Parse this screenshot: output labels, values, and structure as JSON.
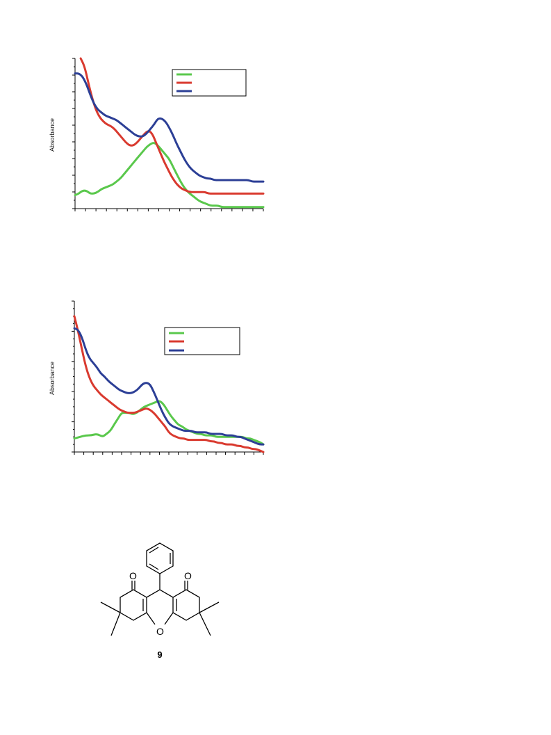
{
  "chart_data": [
    {
      "type": "line",
      "ylabel": "Absorbance",
      "xlabel": "",
      "xlim": [
        0,
        100
      ],
      "ylim": [
        0,
        1
      ],
      "grid": false,
      "legend_position": "top-right",
      "legend_labels_visible": false,
      "series": [
        {
          "color": "#5ac84c",
          "x": [
            0,
            2,
            4,
            6,
            8,
            10,
            12,
            14,
            16,
            18,
            20,
            22,
            24,
            26,
            28,
            30,
            32,
            34,
            36,
            38,
            40,
            42,
            44,
            46,
            48,
            50,
            52,
            54,
            56,
            58,
            60,
            62,
            64,
            66,
            68,
            70,
            72,
            74,
            76,
            78,
            80,
            82,
            84,
            86,
            88,
            90,
            92,
            94,
            96,
            98,
            100
          ],
          "y": [
            0.09,
            0.1,
            0.12,
            0.12,
            0.1,
            0.1,
            0.11,
            0.13,
            0.14,
            0.15,
            0.16,
            0.18,
            0.2,
            0.23,
            0.26,
            0.29,
            0.32,
            0.35,
            0.38,
            0.41,
            0.43,
            0.44,
            0.42,
            0.39,
            0.36,
            0.33,
            0.28,
            0.23,
            0.18,
            0.14,
            0.11,
            0.09,
            0.07,
            0.05,
            0.04,
            0.03,
            0.02,
            0.02,
            0.02,
            0.01,
            0.01,
            0.01,
            0.01,
            0.01,
            0.01,
            0.01,
            0.01,
            0.01,
            0.01,
            0.01,
            0.01
          ]
        },
        {
          "color": "#d93a2f",
          "x": [
            3,
            5,
            7,
            9,
            11,
            13,
            15,
            17,
            19,
            21,
            23,
            25,
            27,
            29,
            31,
            33,
            35,
            37,
            39,
            41,
            43,
            45,
            47,
            49,
            51,
            53,
            55,
            57,
            59,
            61,
            63,
            65,
            67,
            69,
            71,
            73,
            75,
            77,
            79,
            81,
            83,
            85,
            87,
            89,
            91,
            93,
            95,
            97,
            99,
            100
          ],
          "y": [
            1.0,
            0.95,
            0.84,
            0.74,
            0.66,
            0.61,
            0.58,
            0.56,
            0.55,
            0.53,
            0.5,
            0.47,
            0.44,
            0.42,
            0.42,
            0.44,
            0.47,
            0.5,
            0.52,
            0.5,
            0.44,
            0.38,
            0.32,
            0.27,
            0.22,
            0.18,
            0.15,
            0.13,
            0.12,
            0.11,
            0.11,
            0.11,
            0.11,
            0.11,
            0.1,
            0.1,
            0.1,
            0.1,
            0.1,
            0.1,
            0.1,
            0.1,
            0.1,
            0.1,
            0.1,
            0.1,
            0.1,
            0.1,
            0.1,
            0.1
          ]
        },
        {
          "color": "#2c3f96",
          "x": [
            0,
            2,
            4,
            6,
            8,
            10,
            12,
            14,
            16,
            18,
            20,
            22,
            24,
            26,
            28,
            30,
            32,
            34,
            36,
            38,
            40,
            42,
            44,
            46,
            48,
            50,
            52,
            54,
            56,
            58,
            60,
            62,
            64,
            66,
            68,
            70,
            72,
            74,
            76,
            78,
            80,
            82,
            84,
            86,
            88,
            90,
            92,
            94,
            96,
            98,
            100
          ],
          "y": [
            0.9,
            0.9,
            0.88,
            0.83,
            0.76,
            0.7,
            0.66,
            0.64,
            0.62,
            0.61,
            0.6,
            0.59,
            0.57,
            0.55,
            0.53,
            0.51,
            0.49,
            0.48,
            0.48,
            0.5,
            0.53,
            0.56,
            0.6,
            0.6,
            0.58,
            0.54,
            0.49,
            0.43,
            0.38,
            0.33,
            0.29,
            0.26,
            0.24,
            0.22,
            0.21,
            0.2,
            0.2,
            0.19,
            0.19,
            0.19,
            0.19,
            0.19,
            0.19,
            0.19,
            0.19,
            0.19,
            0.19,
            0.18,
            0.18,
            0.18,
            0.18
          ]
        }
      ]
    },
    {
      "type": "line",
      "ylabel": "Absorbance",
      "xlabel": "",
      "xlim": [
        0,
        100
      ],
      "ylim": [
        0,
        1
      ],
      "grid": false,
      "legend_position": "top-right",
      "legend_labels_visible": false,
      "series": [
        {
          "color": "#5ac84c",
          "x": [
            0,
            3,
            6,
            9,
            12,
            15,
            17,
            19,
            21,
            23,
            25,
            27,
            29,
            31,
            33,
            35,
            37,
            39,
            41,
            43,
            45,
            47,
            49,
            51,
            53,
            55,
            57,
            59,
            61,
            63,
            65,
            67,
            69,
            71,
            73,
            75,
            77,
            79,
            81,
            83,
            85,
            87,
            89,
            91,
            93,
            95,
            97,
            99,
            100
          ],
          "y": [
            0.09,
            0.1,
            0.11,
            0.11,
            0.12,
            0.1,
            0.12,
            0.14,
            0.18,
            0.22,
            0.26,
            0.26,
            0.26,
            0.25,
            0.26,
            0.28,
            0.3,
            0.31,
            0.32,
            0.33,
            0.34,
            0.32,
            0.28,
            0.24,
            0.21,
            0.18,
            0.17,
            0.15,
            0.14,
            0.13,
            0.12,
            0.12,
            0.11,
            0.11,
            0.11,
            0.1,
            0.1,
            0.1,
            0.1,
            0.1,
            0.1,
            0.1,
            0.1,
            0.09,
            0.09,
            0.08,
            0.07,
            0.06,
            0.05
          ]
        },
        {
          "color": "#d93a2f",
          "x": [
            0,
            2,
            4,
            6,
            8,
            10,
            12,
            14,
            16,
            18,
            20,
            22,
            24,
            26,
            28,
            30,
            32,
            34,
            36,
            38,
            40,
            42,
            44,
            46,
            48,
            50,
            52,
            54,
            56,
            58,
            60,
            62,
            64,
            66,
            68,
            70,
            72,
            74,
            76,
            78,
            80,
            82,
            84,
            86,
            88,
            90,
            92,
            94,
            96,
            98,
            100
          ],
          "y": [
            0.9,
            0.8,
            0.68,
            0.57,
            0.49,
            0.44,
            0.41,
            0.38,
            0.36,
            0.34,
            0.32,
            0.3,
            0.28,
            0.27,
            0.26,
            0.26,
            0.26,
            0.27,
            0.28,
            0.29,
            0.28,
            0.26,
            0.23,
            0.2,
            0.17,
            0.13,
            0.11,
            0.1,
            0.09,
            0.09,
            0.08,
            0.08,
            0.08,
            0.08,
            0.08,
            0.08,
            0.07,
            0.07,
            0.06,
            0.06,
            0.05,
            0.05,
            0.05,
            0.04,
            0.04,
            0.03,
            0.03,
            0.02,
            0.02,
            0.01,
            0.0
          ]
        },
        {
          "color": "#2c3f96",
          "x": [
            0,
            2,
            4,
            6,
            8,
            10,
            12,
            14,
            16,
            18,
            20,
            22,
            24,
            26,
            28,
            30,
            32,
            34,
            36,
            38,
            40,
            42,
            44,
            46,
            48,
            50,
            52,
            54,
            56,
            58,
            60,
            62,
            64,
            66,
            68,
            70,
            72,
            74,
            76,
            78,
            80,
            82,
            84,
            86,
            88,
            90,
            92,
            94,
            96,
            98,
            100
          ],
          "y": [
            0.82,
            0.81,
            0.76,
            0.68,
            0.62,
            0.59,
            0.56,
            0.52,
            0.5,
            0.47,
            0.45,
            0.43,
            0.41,
            0.4,
            0.39,
            0.39,
            0.4,
            0.42,
            0.45,
            0.46,
            0.45,
            0.4,
            0.34,
            0.28,
            0.23,
            0.19,
            0.17,
            0.16,
            0.15,
            0.14,
            0.14,
            0.14,
            0.13,
            0.13,
            0.13,
            0.13,
            0.12,
            0.12,
            0.12,
            0.12,
            0.11,
            0.11,
            0.11,
            0.1,
            0.1,
            0.09,
            0.08,
            0.07,
            0.06,
            0.05,
            0.05
          ]
        }
      ]
    }
  ],
  "structure": {
    "compound_label": "9",
    "atom_labels": [
      "O",
      "O",
      "O"
    ]
  }
}
